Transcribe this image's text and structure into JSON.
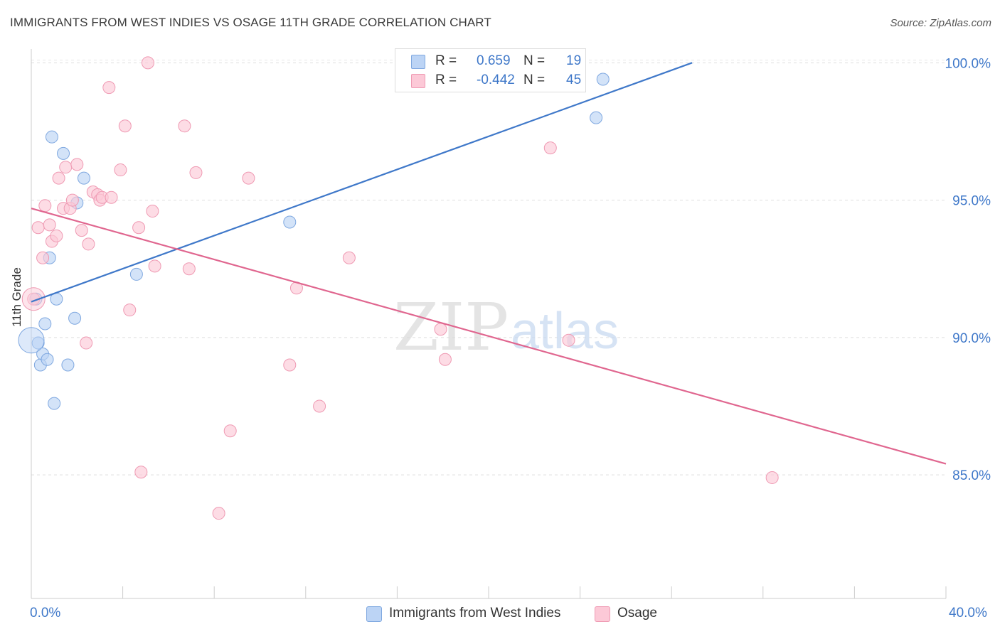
{
  "header": {
    "title": "IMMIGRANTS FROM WEST INDIES VS OSAGE 11TH GRADE CORRELATION CHART",
    "source": "Source: ZipAtlas.com"
  },
  "watermark": {
    "zip": "ZIP",
    "atlas": "atlas"
  },
  "legend": {
    "rows": [
      {
        "swatch_fill": "#bcd4f5",
        "swatch_border": "#7fa8e0",
        "r_label": "R =",
        "r_value": "0.659",
        "n_label": "N =",
        "n_value": "19"
      },
      {
        "swatch_fill": "#fcc9d7",
        "swatch_border": "#ef9ab3",
        "r_label": "R =",
        "r_value": "-0.442",
        "n_label": "N =",
        "n_value": "45"
      }
    ]
  },
  "bottom_legend": {
    "items": [
      {
        "label": "Immigrants from West Indies",
        "fill": "#bcd4f5",
        "border": "#7fa8e0"
      },
      {
        "label": "Osage",
        "fill": "#fcc9d7",
        "border": "#ef9ab3"
      }
    ]
  },
  "chart_data": {
    "type": "scatter",
    "title": "IMMIGRANTS FROM WEST INDIES VS OSAGE 11TH GRADE CORRELATION CHART",
    "xlabel": "",
    "ylabel": "11th Grade",
    "xlim": [
      0,
      40
    ],
    "ylim": [
      80.5,
      100.5
    ],
    "x_tick_labels": [
      "0.0%",
      "40.0%"
    ],
    "y_ticks": [
      85,
      90,
      95,
      100
    ],
    "y_tick_labels": [
      "85.0%",
      "90.0%",
      "95.0%",
      "100.0%"
    ],
    "grid": "horizontal dashed",
    "series": [
      {
        "name": "Immigrants from West Indies",
        "color": "#3f78c9",
        "fill": "#bcd4f5",
        "points": [
          [
            0.2,
            91.4
          ],
          [
            0.3,
            89.8
          ],
          [
            0.4,
            89.0
          ],
          [
            0.5,
            89.4
          ],
          [
            0.6,
            90.5
          ],
          [
            0.7,
            89.2
          ],
          [
            0.8,
            92.9
          ],
          [
            0.9,
            97.3
          ],
          [
            1.0,
            87.6
          ],
          [
            1.1,
            91.4
          ],
          [
            1.4,
            96.7
          ],
          [
            1.6,
            89.0
          ],
          [
            1.9,
            90.7
          ],
          [
            2.0,
            94.9
          ],
          [
            2.3,
            95.8
          ],
          [
            4.6,
            92.3
          ],
          [
            11.3,
            94.2
          ],
          [
            24.7,
            98.0
          ],
          [
            25.0,
            99.4
          ]
        ],
        "trend": {
          "x": [
            0.0,
            28.9
          ],
          "y": [
            91.3,
            100.0
          ]
        }
      },
      {
        "name": "Osage",
        "color": "#e0668f",
        "fill": "#fcc9d7",
        "points": [
          [
            0.1,
            91.4
          ],
          [
            0.3,
            94.0
          ],
          [
            0.5,
            92.9
          ],
          [
            0.6,
            94.8
          ],
          [
            0.8,
            94.1
          ],
          [
            0.9,
            93.5
          ],
          [
            1.1,
            93.7
          ],
          [
            1.2,
            95.8
          ],
          [
            1.4,
            94.7
          ],
          [
            1.5,
            96.2
          ],
          [
            1.7,
            94.7
          ],
          [
            1.8,
            95.0
          ],
          [
            2.0,
            96.3
          ],
          [
            2.2,
            93.9
          ],
          [
            2.4,
            89.8
          ],
          [
            2.5,
            93.4
          ],
          [
            2.7,
            95.3
          ],
          [
            2.9,
            95.2
          ],
          [
            3.0,
            95.0
          ],
          [
            3.1,
            95.1
          ],
          [
            3.4,
            99.1
          ],
          [
            3.5,
            95.1
          ],
          [
            3.9,
            96.1
          ],
          [
            4.1,
            97.7
          ],
          [
            4.3,
            91.0
          ],
          [
            4.7,
            94.0
          ],
          [
            4.8,
            85.1
          ],
          [
            5.1,
            100.0
          ],
          [
            5.3,
            94.6
          ],
          [
            5.4,
            92.6
          ],
          [
            6.7,
            97.7
          ],
          [
            6.9,
            92.5
          ],
          [
            7.2,
            96.0
          ],
          [
            8.2,
            83.6
          ],
          [
            8.7,
            86.6
          ],
          [
            9.5,
            95.8
          ],
          [
            11.3,
            89.0
          ],
          [
            11.6,
            91.8
          ],
          [
            12.6,
            87.5
          ],
          [
            13.9,
            92.9
          ],
          [
            17.9,
            90.3
          ],
          [
            18.1,
            89.2
          ],
          [
            22.7,
            96.9
          ],
          [
            23.5,
            89.9
          ],
          [
            32.4,
            84.9
          ]
        ],
        "trend": {
          "x": [
            0.0,
            40.0
          ],
          "y": [
            94.7,
            85.4
          ]
        }
      }
    ]
  }
}
